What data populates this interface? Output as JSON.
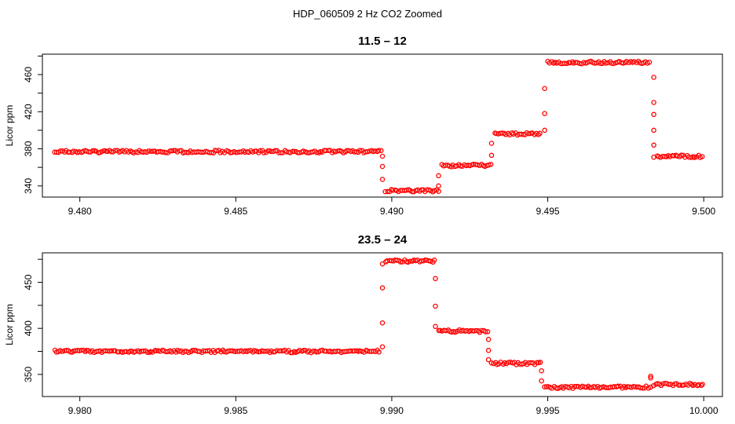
{
  "figure": {
    "title": "HDP_060509  2 Hz CO2 Zoomed"
  },
  "chart_data": [
    {
      "type": "scatter",
      "title": "11.5 – 12",
      "xlabel": "",
      "ylabel": "Licor ppm",
      "xlim": [
        9.4788,
        9.5006
      ],
      "ylim": [
        328,
        482
      ],
      "xticks": [
        9.48,
        9.485,
        9.49,
        9.495,
        9.5
      ],
      "xtick_labels": [
        "9.480",
        "9.485",
        "9.490",
        "9.495",
        "9.500"
      ],
      "yticks": [
        340,
        380,
        420,
        460
      ],
      "ytick_labels": [
        "340",
        "380",
        "420",
        "460"
      ],
      "grid": false,
      "legend": "none",
      "marker": "open-circle",
      "color": "#ff0000",
      "segments": [
        {
          "x_start": 9.4792,
          "x_end": 9.4897,
          "y": 377
        },
        {
          "x_start": 9.4898,
          "x_end": 9.4915,
          "y": 335
        },
        {
          "x_start": 9.4916,
          "x_end": 9.4932,
          "y": 362
        },
        {
          "x_start": 9.4933,
          "x_end": 9.4948,
          "y": 396
        },
        {
          "x_start": 9.495,
          "x_end": 9.4983,
          "y": 473
        },
        {
          "x_start": 9.4985,
          "x_end": 9.5,
          "y": 372
        }
      ],
      "transitions": [
        {
          "x": 9.4897,
          "y": [
            372,
            361,
            347
          ]
        },
        {
          "x": 9.4915,
          "y": [
            340,
            351
          ]
        },
        {
          "x": 9.4932,
          "y": [
            373,
            386
          ]
        },
        {
          "x": 9.4949,
          "y": [
            400,
            418,
            445
          ]
        },
        {
          "x": 9.4984,
          "y": [
            457,
            430,
            417,
            400,
            384,
            371
          ]
        }
      ]
    },
    {
      "type": "scatter",
      "title": "23.5 – 24",
      "xlabel": "",
      "ylabel": "Licor ppm",
      "xlim": [
        9.9788,
        10.0006
      ],
      "ylim": [
        326,
        482
      ],
      "xticks": [
        9.98,
        9.985,
        9.99,
        9.995,
        10.0
      ],
      "xtick_labels": [
        "9.980",
        "9.985",
        "9.990",
        "9.995",
        "10.000"
      ],
      "yticks": [
        350,
        400,
        450
      ],
      "ytick_labels": [
        "350",
        "400",
        "450"
      ],
      "grid": false,
      "legend": "none",
      "marker": "open-circle",
      "color": "#ff0000",
      "segments": [
        {
          "x_start": 9.9792,
          "x_end": 9.9896,
          "y": 375
        },
        {
          "x_start": 9.9898,
          "x_end": 9.9914,
          "y": 473
        },
        {
          "x_start": 9.9915,
          "x_end": 9.9931,
          "y": 397
        },
        {
          "x_start": 9.9932,
          "x_end": 9.9948,
          "y": 362
        },
        {
          "x_start": 9.9949,
          "x_end": 9.9983,
          "y": 336
        },
        {
          "x_start": 9.9984,
          "x_end": 10.0,
          "y": 339
        }
      ],
      "transitions": [
        {
          "x": 9.9897,
          "y": [
            380,
            406,
            444,
            470
          ]
        },
        {
          "x": 9.9914,
          "y": [
            454,
            424,
            402
          ]
        },
        {
          "x": 9.9931,
          "y": [
            388,
            376,
            366
          ]
        },
        {
          "x": 9.9948,
          "y": [
            354,
            343
          ]
        },
        {
          "x": 9.9983,
          "y": [
            346,
            348
          ]
        }
      ]
    }
  ]
}
